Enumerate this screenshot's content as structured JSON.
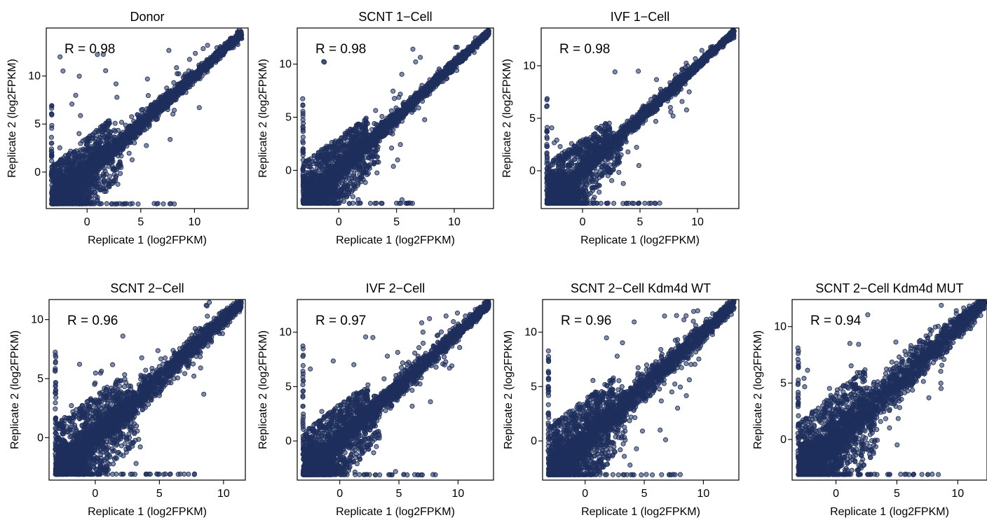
{
  "page": {
    "point_color": "#1f2f5c",
    "point_fill": "#1f2f5c",
    "marker": "open-circle"
  },
  "chart_data": [
    {
      "type": "scatter",
      "title": "Donor",
      "annotation": "R = 0.98",
      "xlabel": "Replicate 1 (log2FPKM)",
      "ylabel": "Replicate 2 (log2FPKM)",
      "xlim": [
        -3.8,
        15.0
      ],
      "ylim": [
        -3.8,
        15.0
      ],
      "x_ticks": [
        {
          "v": 0,
          "label": "0"
        },
        {
          "v": 5,
          "label": "5"
        },
        {
          "v": 10,
          "label": "10"
        }
      ],
      "y_ticks": [
        {
          "v": 0,
          "label": "0"
        },
        {
          "v": 5,
          "label": "5"
        },
        {
          "v": 10,
          "label": "10"
        }
      ],
      "x_floor": -3.3,
      "y_floor": -3.3,
      "diag_max": 14.4,
      "band": [
        [
          -3.3,
          1.0,
          3.3
        ],
        [
          0,
          1.2,
          3.0
        ],
        [
          3,
          1.1,
          2.7
        ],
        [
          6,
          1.0,
          2.2
        ],
        [
          9,
          0.8,
          1.6
        ],
        [
          12,
          0.5,
          1.0
        ]
      ],
      "y_left_max": 7.8,
      "x_bottom_max": 8.2
    },
    {
      "type": "scatter",
      "title": "SCNT 1−Cell",
      "annotation": "R = 0.98",
      "xlabel": "Replicate 1 (log2FPKM)",
      "ylabel": "Replicate 2 (log2FPKM)",
      "xlim": [
        -3.6,
        13.4
      ],
      "ylim": [
        -3.6,
        13.4
      ],
      "x_ticks": [
        {
          "v": 0,
          "label": "0"
        },
        {
          "v": 5,
          "label": "5"
        },
        {
          "v": 10,
          "label": "10"
        }
      ],
      "y_ticks": [
        {
          "v": 0,
          "label": "0"
        },
        {
          "v": 5,
          "label": "5"
        },
        {
          "v": 10,
          "label": "10"
        }
      ],
      "x_floor": -3.1,
      "y_floor": -3.1,
      "diag_max": 13.0,
      "band": [
        [
          -3.1,
          0.8,
          3.2
        ],
        [
          0,
          0.9,
          2.6
        ],
        [
          3,
          0.8,
          2.0
        ],
        [
          6,
          0.7,
          1.4
        ],
        [
          9,
          0.5,
          0.9
        ],
        [
          12,
          0.3,
          0.5
        ]
      ],
      "y_left_max": 6.8,
      "x_bottom_max": 7.0
    },
    {
      "type": "scatter",
      "title": "IVF 1−Cell",
      "annotation": "R = 0.98",
      "xlabel": "Replicate 1 (log2FPKM)",
      "ylabel": "Replicate 2 (log2FPKM)",
      "xlim": [
        -3.6,
        13.6
      ],
      "ylim": [
        -3.6,
        13.6
      ],
      "x_ticks": [
        {
          "v": 0,
          "label": "0"
        },
        {
          "v": 5,
          "label": "5"
        },
        {
          "v": 10,
          "label": "10"
        }
      ],
      "y_ticks": [
        {
          "v": 0,
          "label": "0"
        },
        {
          "v": 5,
          "label": "5"
        },
        {
          "v": 10,
          "label": "10"
        }
      ],
      "x_floor": -3.1,
      "y_floor": -3.1,
      "diag_max": 13.2,
      "band": [
        [
          -3.1,
          0.7,
          3.2
        ],
        [
          0,
          0.8,
          2.5
        ],
        [
          3,
          0.7,
          1.9
        ],
        [
          6,
          0.6,
          1.3
        ],
        [
          9,
          0.5,
          0.8
        ],
        [
          12,
          0.3,
          0.5
        ]
      ],
      "y_left_max": 7.0,
      "x_bottom_max": 6.8
    },
    {
      "type": "scatter",
      "title": "SCNT 2−Cell",
      "annotation": "R = 0.96",
      "xlabel": "Replicate 1 (log2FPKM)",
      "ylabel": "Replicate 2 (log2FPKM)",
      "xlim": [
        -3.6,
        11.7
      ],
      "ylim": [
        -3.6,
        11.7
      ],
      "x_ticks": [
        {
          "v": 0,
          "label": "0"
        },
        {
          "v": 5,
          "label": "5"
        },
        {
          "v": 10,
          "label": "10"
        }
      ],
      "y_ticks": [
        {
          "v": 0,
          "label": "0"
        },
        {
          "v": 5,
          "label": "5"
        },
        {
          "v": 10,
          "label": "10"
        }
      ],
      "x_floor": -3.1,
      "y_floor": -3.1,
      "diag_max": 11.4,
      "band": [
        [
          -3.1,
          0.9,
          3.5
        ],
        [
          0,
          1.3,
          3.0
        ],
        [
          3,
          1.3,
          2.6
        ],
        [
          6,
          1.1,
          2.0
        ],
        [
          9,
          0.8,
          1.3
        ],
        [
          11,
          0.5,
          0.8
        ]
      ],
      "y_left_max": 8.2,
      "x_bottom_max": 7.8
    },
    {
      "type": "scatter",
      "title": "IVF 2−Cell",
      "annotation": "R = 0.97",
      "xlabel": "Replicate 1 (log2FPKM)",
      "ylabel": "Replicate 2 (log2FPKM)",
      "xlim": [
        -3.6,
        13.0
      ],
      "ylim": [
        -3.6,
        13.0
      ],
      "x_ticks": [
        {
          "v": 0,
          "label": "0"
        },
        {
          "v": 5,
          "label": "5"
        },
        {
          "v": 10,
          "label": "10"
        }
      ],
      "y_ticks": [
        {
          "v": 0,
          "label": "0"
        },
        {
          "v": 5,
          "label": "5"
        },
        {
          "v": 10,
          "label": "10"
        }
      ],
      "x_floor": -3.1,
      "y_floor": -3.1,
      "diag_max": 12.6,
      "band": [
        [
          -3.1,
          0.8,
          3.4
        ],
        [
          0,
          1.1,
          2.8
        ],
        [
          3,
          1.0,
          2.3
        ],
        [
          6,
          0.9,
          1.7
        ],
        [
          9,
          0.7,
          1.1
        ],
        [
          12,
          0.4,
          0.6
        ]
      ],
      "y_left_max": 8.8,
      "x_bottom_max": 8.6
    },
    {
      "type": "scatter",
      "title": "SCNT 2−Cell Kdm4d WT",
      "annotation": "R = 0.96",
      "xlabel": "Replicate 1 (log2FPKM)",
      "ylabel": "Replicate 2 (log2FPKM)",
      "xlim": [
        -3.6,
        13.0
      ],
      "ylim": [
        -3.6,
        13.0
      ],
      "x_ticks": [
        {
          "v": 0,
          "label": "0"
        },
        {
          "v": 5,
          "label": "5"
        },
        {
          "v": 10,
          "label": "10"
        }
      ],
      "y_ticks": [
        {
          "v": 0,
          "label": "0"
        },
        {
          "v": 5,
          "label": "5"
        },
        {
          "v": 10,
          "label": "10"
        }
      ],
      "x_floor": -3.1,
      "y_floor": -3.1,
      "diag_max": 12.6,
      "band": [
        [
          -3.1,
          1.0,
          3.6
        ],
        [
          0,
          1.5,
          3.2
        ],
        [
          3,
          1.5,
          2.8
        ],
        [
          6,
          1.3,
          2.3
        ],
        [
          9,
          1.0,
          1.6
        ],
        [
          12,
          0.6,
          1.0
        ]
      ],
      "y_left_max": 8.4,
      "x_bottom_max": 8.2
    },
    {
      "type": "scatter",
      "title": "SCNT 2−Cell Kdm4d MUT",
      "annotation": "R = 0.94",
      "xlabel": "Replicate 1 (log2FPKM)",
      "ylabel": "Replicate 2 (log2FPKM)",
      "xlim": [
        -3.6,
        12.4
      ],
      "ylim": [
        -3.6,
        12.4
      ],
      "x_ticks": [
        {
          "v": 0,
          "label": "0"
        },
        {
          "v": 5,
          "label": "5"
        },
        {
          "v": 10,
          "label": "10"
        }
      ],
      "y_ticks": [
        {
          "v": 0,
          "label": "0"
        },
        {
          "v": 5,
          "label": "5"
        },
        {
          "v": 10,
          "label": "10"
        }
      ],
      "x_floor": -3.1,
      "y_floor": -3.1,
      "diag_max": 12.2,
      "band": [
        [
          -3.1,
          1.2,
          3.8
        ],
        [
          0,
          1.8,
          3.6
        ],
        [
          3,
          1.8,
          3.2
        ],
        [
          6,
          1.6,
          2.7
        ],
        [
          9,
          1.2,
          1.9
        ],
        [
          12,
          0.8,
          1.2
        ]
      ],
      "y_left_max": 8.3,
      "x_bottom_max": 8.8
    }
  ]
}
